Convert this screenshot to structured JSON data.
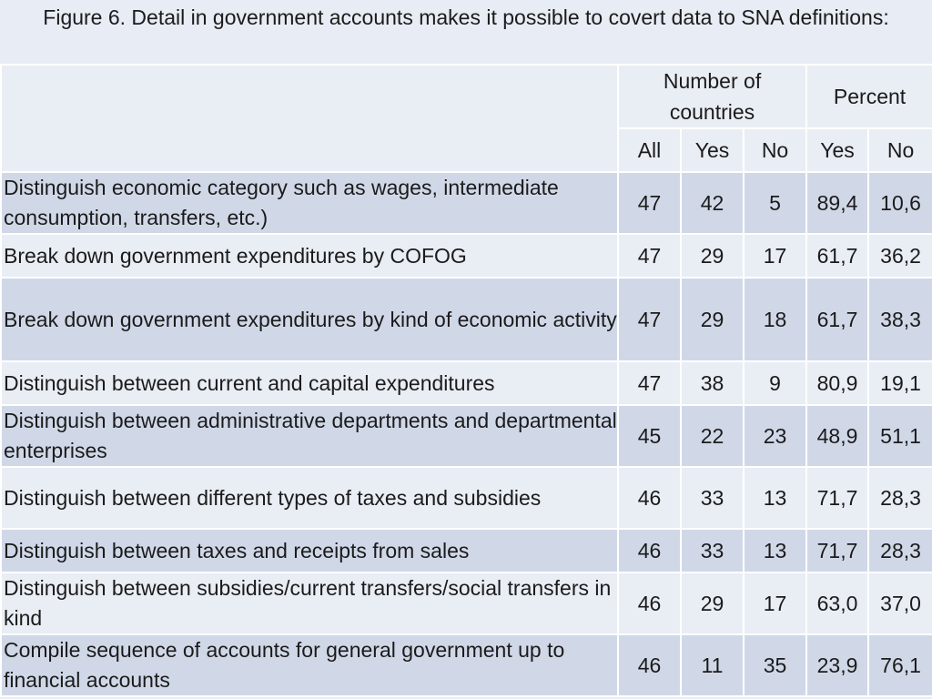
{
  "title": "Figure 6. Detail in government accounts makes it possible to covert data to SNA definitions:",
  "table": {
    "group_headers": {
      "countries": "Number of countries",
      "percent": "Percent"
    },
    "sub_headers": [
      "All",
      "Yes",
      "No",
      "Yes",
      "No"
    ],
    "rows": [
      {
        "label": "Distinguish economic category such as wages, intermediate consumption, transfers, etc.)",
        "all": "47",
        "yes": "42",
        "no": "5",
        "pct_yes": "89,4",
        "pct_no": "10,6"
      },
      {
        "label": "Break down government expenditures by COFOG",
        "all": "47",
        "yes": "29",
        "no": "17",
        "pct_yes": "61,7",
        "pct_no": "36,2"
      },
      {
        "label": "Break down government expenditures by kind of economic activity",
        "all": "47",
        "yes": "29",
        "no": "18",
        "pct_yes": "61,7",
        "pct_no": "38,3"
      },
      {
        "label": "Distinguish between current and capital expenditures",
        "all": "47",
        "yes": "38",
        "no": "9",
        "pct_yes": "80,9",
        "pct_no": "19,1"
      },
      {
        "label": "Distinguish between administrative departments and departmental enterprises",
        "all": "45",
        "yes": "22",
        "no": "23",
        "pct_yes": "48,9",
        "pct_no": "51,1"
      },
      {
        "label": "Distinguish between different types of taxes and subsidies",
        "all": "46",
        "yes": "33",
        "no": "13",
        "pct_yes": "71,7",
        "pct_no": "28,3"
      },
      {
        "label": "Distinguish between taxes and receipts from sales",
        "all": "46",
        "yes": "33",
        "no": "13",
        "pct_yes": "71,7",
        "pct_no": "28,3"
      },
      {
        "label": "Distinguish between subsidies/current transfers/social transfers in kind",
        "all": "46",
        "yes": "29",
        "no": "17",
        "pct_yes": "63,0",
        "pct_no": "37,0"
      },
      {
        "label": "Compile sequence of accounts for general government up to financial accounts",
        "all": "46",
        "yes": "11",
        "no": "35",
        "pct_yes": "23,9",
        "pct_no": "76,1"
      }
    ]
  }
}
